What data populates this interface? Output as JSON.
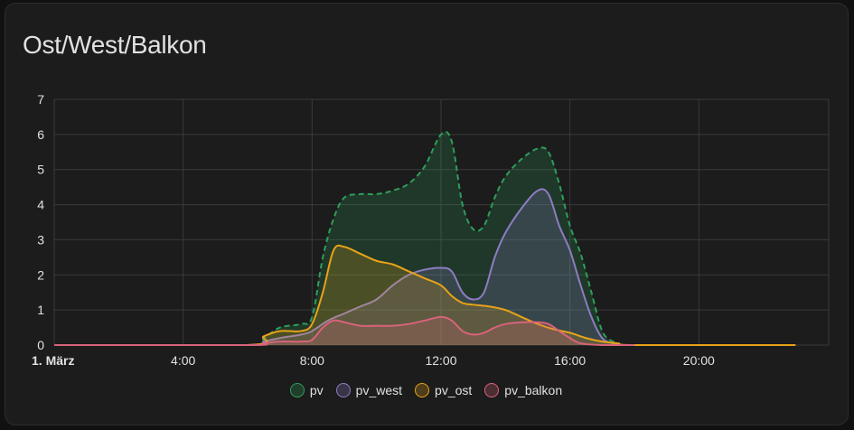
{
  "card": {
    "title": "Ost/West/Balkon"
  },
  "chart_data": {
    "type": "area",
    "title": "Ost/West/Balkon",
    "xlabel": "",
    "ylabel": "",
    "ylim": [
      0,
      7
    ],
    "xlim": [
      "00:00",
      "24:00"
    ],
    "x_ticks": [
      "1. März",
      "4:00",
      "8:00",
      "12:00",
      "16:00",
      "20:00"
    ],
    "y_ticks": [
      "0",
      "1",
      "2",
      "3",
      "4",
      "5",
      "6",
      "7"
    ],
    "grid": true,
    "legend_position": "bottom-center",
    "series": [
      {
        "name": "pv",
        "color": "#2e9e5b",
        "dashed": true,
        "x": [
          "00:00",
          "06:00",
          "06:30",
          "07:00",
          "07:40",
          "08:00",
          "08:20",
          "08:40",
          "09:00",
          "09:30",
          "10:00",
          "10:30",
          "11:00",
          "11:30",
          "12:00",
          "12:20",
          "12:40",
          "13:00",
          "13:20",
          "13:40",
          "14:00",
          "14:30",
          "15:00",
          "15:20",
          "15:40",
          "16:00",
          "16:20",
          "16:40",
          "17:00",
          "17:20",
          "17:40",
          "18:00"
        ],
        "values": [
          0,
          0,
          0.2,
          0.5,
          0.6,
          0.8,
          2.5,
          3.6,
          4.2,
          4.3,
          4.3,
          4.4,
          4.6,
          5.1,
          6.0,
          5.8,
          4.0,
          3.3,
          3.4,
          4.2,
          4.8,
          5.3,
          5.6,
          5.5,
          4.6,
          3.4,
          2.6,
          1.5,
          0.4,
          0.1,
          0,
          0
        ]
      },
      {
        "name": "pv_west",
        "color": "#8e7cc3",
        "dashed": false,
        "x": [
          "00:00",
          "06:00",
          "06:30",
          "07:00",
          "07:40",
          "08:00",
          "08:30",
          "09:00",
          "09:30",
          "10:00",
          "10:30",
          "11:00",
          "11:30",
          "12:00",
          "12:20",
          "12:40",
          "13:00",
          "13:20",
          "13:40",
          "14:00",
          "14:30",
          "15:00",
          "15:20",
          "15:40",
          "16:00",
          "16:20",
          "16:40",
          "17:00",
          "17:20",
          "17:40",
          "18:00"
        ],
        "values": [
          0,
          0,
          0.1,
          0.2,
          0.3,
          0.4,
          0.7,
          0.9,
          1.1,
          1.3,
          1.7,
          2.0,
          2.15,
          2.2,
          2.1,
          1.5,
          1.3,
          1.5,
          2.5,
          3.2,
          3.9,
          4.4,
          4.3,
          3.4,
          2.7,
          1.7,
          0.8,
          0.2,
          0.05,
          0,
          0
        ]
      },
      {
        "name": "pv_ost",
        "color": "#e8a317",
        "dashed": false,
        "x": [
          "00:00",
          "06:00",
          "06:30",
          "07:00",
          "07:40",
          "08:00",
          "08:20",
          "08:40",
          "09:00",
          "09:30",
          "10:00",
          "10:30",
          "11:00",
          "11:30",
          "12:00",
          "12:20",
          "12:40",
          "13:00",
          "13:30",
          "14:00",
          "14:30",
          "15:00",
          "15:30",
          "16:00",
          "16:30",
          "17:00",
          "17:30",
          "18:00",
          "23:00"
        ],
        "values": [
          0,
          0,
          0.25,
          0.4,
          0.4,
          0.6,
          1.5,
          2.7,
          2.8,
          2.6,
          2.4,
          2.3,
          2.1,
          1.9,
          1.7,
          1.4,
          1.2,
          1.15,
          1.1,
          1.0,
          0.8,
          0.6,
          0.45,
          0.35,
          0.2,
          0.1,
          0.05,
          0,
          0
        ]
      },
      {
        "name": "pv_balkon",
        "color": "#d9637c",
        "dashed": false,
        "x": [
          "00:00",
          "06:00",
          "06:30",
          "07:00",
          "07:40",
          "08:00",
          "08:20",
          "08:40",
          "09:00",
          "09:30",
          "10:00",
          "10:30",
          "11:00",
          "11:30",
          "12:00",
          "12:20",
          "12:40",
          "13:00",
          "13:20",
          "13:40",
          "14:00",
          "14:30",
          "15:00",
          "15:20",
          "15:40",
          "16:00",
          "16:20",
          "17:00",
          "18:00"
        ],
        "values": [
          0,
          0,
          0.05,
          0.1,
          0.1,
          0.15,
          0.5,
          0.7,
          0.65,
          0.55,
          0.55,
          0.55,
          0.6,
          0.7,
          0.8,
          0.7,
          0.4,
          0.3,
          0.35,
          0.5,
          0.6,
          0.65,
          0.65,
          0.6,
          0.4,
          0.2,
          0.05,
          0,
          0
        ]
      }
    ]
  }
}
